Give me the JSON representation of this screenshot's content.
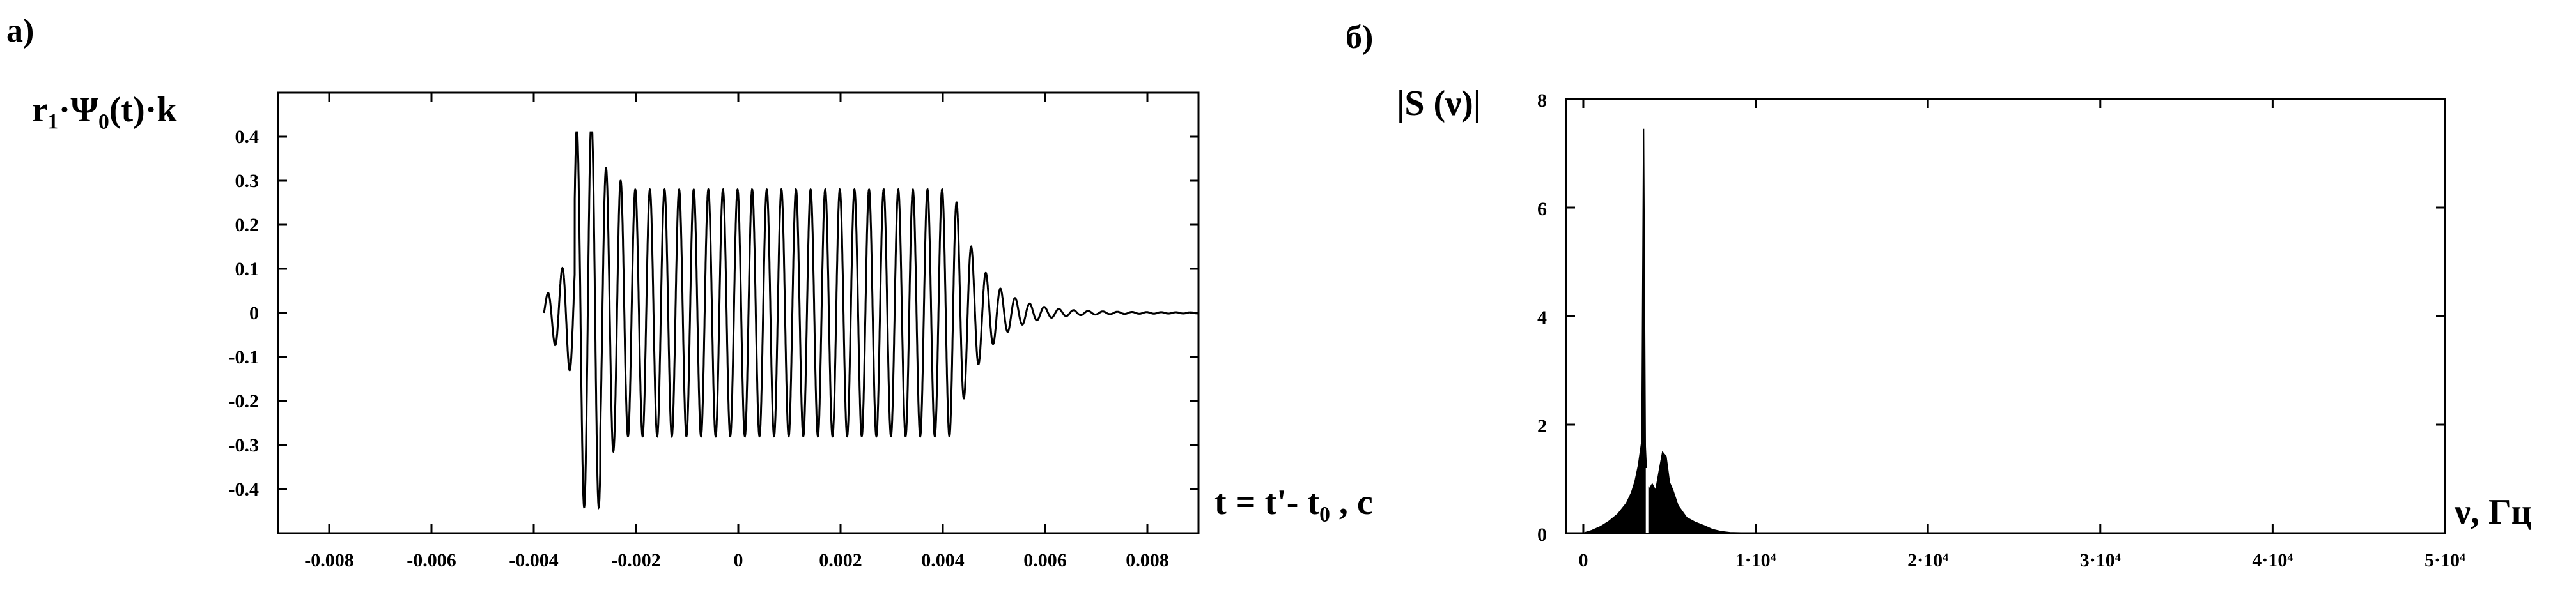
{
  "chart_data": [
    {
      "type": "line",
      "panel_label": "а)",
      "ylabel": "r₁·Ψ₀(t)·k",
      "xlabel": "t = t'- t₀ , c",
      "xlim": [
        -0.009,
        0.009
      ],
      "ylim": [
        -0.5,
        0.5
      ],
      "x_ticks": [
        -0.008,
        -0.006,
        -0.004,
        -0.002,
        0,
        0.002,
        0.004,
        0.006,
        0.008
      ],
      "x_tick_labels": [
        "-0.008",
        "-0.006",
        "-0.004",
        "-0.002",
        "0",
        "0.002",
        "0.004",
        "0.006",
        "0.008"
      ],
      "y_ticks": [
        -0.4,
        -0.3,
        -0.2,
        -0.1,
        0,
        0.1,
        0.2,
        0.3,
        0.4
      ],
      "y_tick_labels": [
        "-0.4",
        "-0.3",
        "-0.2",
        "-0.1",
        "0",
        "0.1",
        "0.2",
        "0.3",
        "0.4"
      ],
      "series": [
        {
          "signal": {
            "t_start": -0.0038,
            "t_end": 0.009,
            "carrier_frequency_hz": 3500,
            "steady_amplitude": 0.28,
            "peak_max": 0.41,
            "peak_min": -0.45,
            "decay_after": 0.0042
          }
        }
      ],
      "grid": false
    },
    {
      "type": "area",
      "panel_label": "б)",
      "ylabel": "|S (ν)|",
      "xlabel": "ν, Гц",
      "xlim": [
        -1000,
        50000
      ],
      "ylim": [
        0,
        8
      ],
      "x_ticks": [
        0,
        10000,
        20000,
        30000,
        40000,
        50000
      ],
      "x_tick_labels": [
        "0",
        "1·10⁴",
        "2·10⁴",
        "3·10⁴",
        "4·10⁴",
        "5·10⁴"
      ],
      "y_ticks": [
        0,
        2,
        4,
        6,
        8
      ],
      "y_tick_labels": [
        "0",
        "2",
        "4",
        "6",
        "8"
      ],
      "series": [
        {
          "x": [
            0,
            500,
            1000,
            1500,
            2000,
            2500,
            2800,
            3000,
            3200,
            3400,
            3500,
            3600,
            3700,
            3800,
            4000,
            4200,
            4400,
            4600,
            4800,
            5000,
            5200,
            5500,
            6000,
            6500,
            7000,
            7500,
            8000,
            8500,
            10000,
            20000,
            30000,
            40000,
            50000
          ],
          "y": [
            0,
            0.05,
            0.12,
            0.22,
            0.35,
            0.55,
            0.75,
            0.95,
            1.25,
            1.7,
            7.45,
            1.6,
            0.9,
            0.8,
            0.85,
            0.9,
            1.05,
            1.3,
            1.4,
            1.0,
            0.7,
            0.45,
            0.3,
            0.2,
            0.12,
            0.06,
            0.03,
            0.01,
            0,
            0,
            0,
            0,
            0
          ]
        }
      ],
      "grid": false
    }
  ]
}
